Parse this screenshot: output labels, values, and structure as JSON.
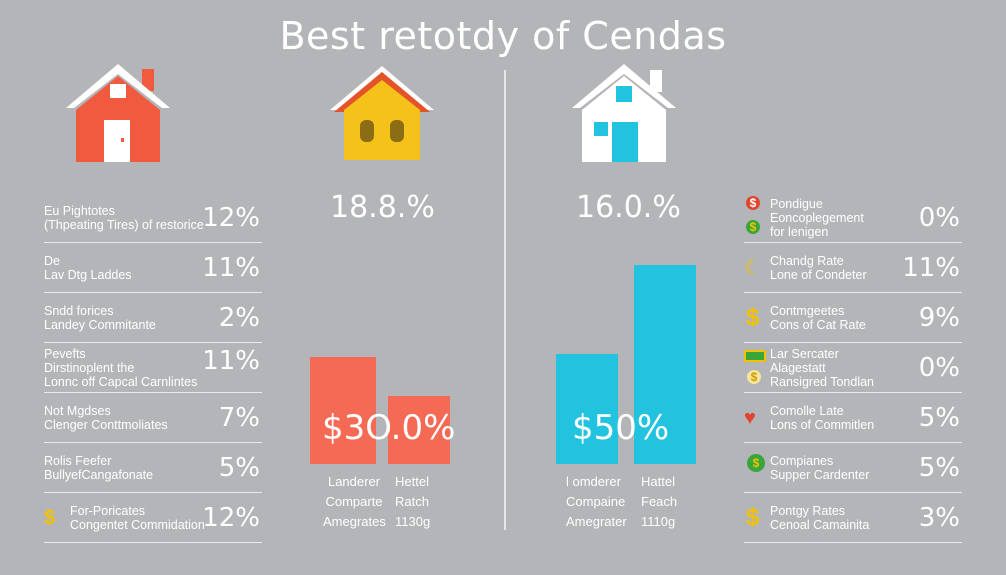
{
  "title": "Best retotdy of Cendas",
  "colors": {
    "background": "#b3b5b9",
    "coral": "#f46a55",
    "yellow": "#f5c21a",
    "cyan": "#22c3df",
    "coin_yellow": "#f2c200",
    "icon_red": "#e2452e",
    "icon_green": "#3aa53a"
  },
  "panels": {
    "house_left": {
      "icon": "house-icon",
      "color": "#f05b3f"
    },
    "house_center_left": {
      "icon": "house-icon",
      "color": "#f5c21a",
      "percent": "18.8.%"
    },
    "house_center_right": {
      "icon": "house-icon",
      "color": "#ffffff",
      "percent": "16.0.%"
    }
  },
  "left_list": [
    {
      "label_lines": [
        "Eu Pightotes",
        "(Thpeating Tires) of restorice"
      ],
      "value": "12%"
    },
    {
      "label_lines": [
        "De",
        "Lav Dtg Laddes"
      ],
      "value": "11%"
    },
    {
      "label_lines": [
        "Sndd forices",
        "Landey Commitante"
      ],
      "value": "2%"
    },
    {
      "label_lines": [
        "Pevefts",
        "Dirstinoplent the",
        "Lonnc off Capcal Carnlintes"
      ],
      "value": "11%"
    },
    {
      "label_lines": [
        "Not Mgdses",
        "Clenger Conttmoliates"
      ],
      "value": "7%"
    },
    {
      "label_lines": [
        "Rolis Feefer",
        "BullyefCangafonate"
      ],
      "value": "5%"
    },
    {
      "label_lines": [
        "For-Poricates",
        "Congentet Commidation"
      ],
      "value": "12%",
      "icon": "dollar-coin-icon"
    }
  ],
  "right_list": [
    {
      "label_lines": [
        "Pondigue",
        "Eoncoplegement",
        "for lenigen"
      ],
      "value": "0%",
      "icons": [
        "red-dollar-icon",
        "green-dollar-icon"
      ]
    },
    {
      "label_lines": [
        "Chandg Rate",
        "Lone of Condeter"
      ],
      "value": "11%",
      "icons": [
        "moon-coin-icon"
      ]
    },
    {
      "label_lines": [
        "Contmgeetes",
        "Cons of Cat Rate"
      ],
      "value": "9%",
      "icons": [
        "dollar-coin-icon"
      ]
    },
    {
      "label_lines": [
        "Lar Sercater",
        "Alagestatt",
        "Ransigred Tondlan"
      ],
      "value": "0%",
      "icons": [
        "cash-stack-icon",
        "coin-icon"
      ]
    },
    {
      "label_lines": [
        "Comolle Late",
        "Lons of Commitlen"
      ],
      "value": "5%",
      "icons": [
        "red-heart-icon"
      ]
    },
    {
      "label_lines": [
        "Compianes",
        "Supper Cardenter"
      ],
      "value": "5%",
      "icons": [
        "green-dollar-icon"
      ]
    },
    {
      "label_lines": [
        "Pontgy Rates",
        "Cenoal Camainita"
      ],
      "value": "3%",
      "icons": [
        "dollar-coin-icon"
      ]
    }
  ],
  "chart_left": {
    "label": "$3.0.0%",
    "display": "$3O.0%",
    "bars": [
      {
        "color": "#f46a55",
        "value": 1.0
      },
      {
        "color": "#f46a55",
        "value": 0.6
      }
    ],
    "captions": [
      [
        "Landerer",
        "Comparte",
        "Amegrates"
      ],
      [
        "Hettel",
        "Ratch",
        "1130g"
      ]
    ]
  },
  "chart_right": {
    "label": "$50%",
    "bars": [
      {
        "color": "#22c3df",
        "value": 0.55
      },
      {
        "color": "#22c3df",
        "value": 1.0
      }
    ],
    "captions": [
      [
        "l omderer",
        "Compaine",
        "Amegrater"
      ],
      [
        "Hattel",
        "Feach",
        "1110g"
      ]
    ]
  }
}
